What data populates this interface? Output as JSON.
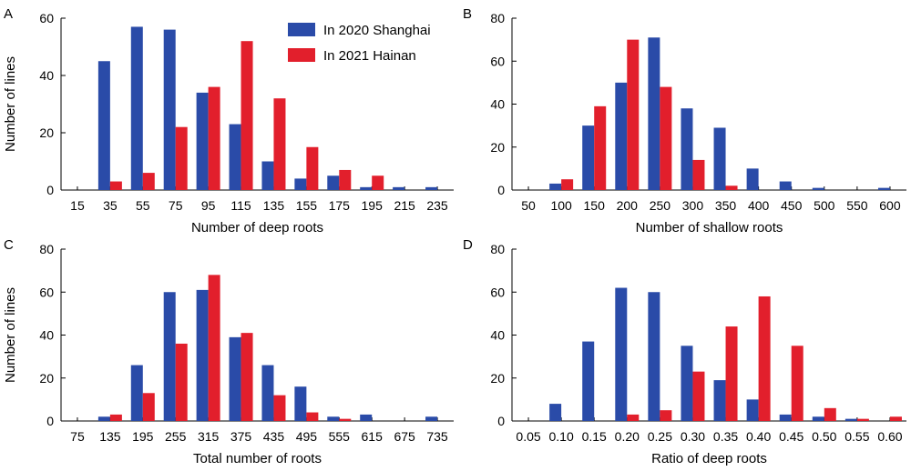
{
  "legend": {
    "series": [
      {
        "name": "In 2020 Shanghai",
        "color": "#2a4ba8"
      },
      {
        "name": "In 2021 Hainan",
        "color": "#e21f2c"
      }
    ]
  },
  "chart_data": [
    {
      "panel": "A",
      "type": "bar",
      "xlabel": "Number of deep roots",
      "ylabel": "Number of lines",
      "ylim": [
        0,
        60
      ],
      "yticks": [
        0,
        20,
        40,
        60
      ],
      "categories": [
        "15",
        "35",
        "55",
        "75",
        "95",
        "115",
        "135",
        "155",
        "175",
        "195",
        "215",
        "235"
      ],
      "series": [
        {
          "name": "In 2020 Shanghai",
          "color": "#2a4ba8",
          "values": [
            0,
            45,
            57,
            56,
            34,
            23,
            10,
            4,
            5,
            1,
            1,
            1
          ]
        },
        {
          "name": "In 2021 Hainan",
          "color": "#e21f2c",
          "values": [
            0,
            3,
            6,
            22,
            36,
            52,
            32,
            15,
            7,
            5,
            0,
            0
          ]
        }
      ],
      "grid": false,
      "legend_position": "top-right"
    },
    {
      "panel": "B",
      "type": "bar",
      "xlabel": "Number of shallow roots",
      "ylabel": "",
      "ylim": [
        0,
        80
      ],
      "yticks": [
        0,
        20,
        40,
        60,
        80
      ],
      "categories": [
        "50",
        "100",
        "150",
        "200",
        "250",
        "300",
        "350",
        "400",
        "450",
        "500",
        "550",
        "600"
      ],
      "series": [
        {
          "name": "In 2020 Shanghai",
          "color": "#2a4ba8",
          "values": [
            0,
            3,
            30,
            50,
            71,
            38,
            29,
            10,
            4,
            1,
            0,
            1
          ]
        },
        {
          "name": "In 2021 Hainan",
          "color": "#e21f2c",
          "values": [
            0,
            5,
            39,
            70,
            48,
            14,
            2,
            0,
            0,
            0,
            0,
            0
          ]
        }
      ],
      "grid": false
    },
    {
      "panel": "C",
      "type": "bar",
      "xlabel": "Total number of roots",
      "ylabel": "Number of lines",
      "ylim": [
        0,
        80
      ],
      "yticks": [
        0,
        20,
        40,
        60,
        80
      ],
      "categories": [
        "75",
        "135",
        "195",
        "255",
        "315",
        "375",
        "435",
        "495",
        "555",
        "615",
        "675",
        "735"
      ],
      "series": [
        {
          "name": "In 2020 Shanghai",
          "color": "#2a4ba8",
          "values": [
            0,
            2,
            26,
            60,
            61,
            39,
            26,
            16,
            2,
            3,
            0,
            2
          ]
        },
        {
          "name": "In 2021 Hainan",
          "color": "#e21f2c",
          "values": [
            0,
            3,
            13,
            36,
            68,
            41,
            12,
            4,
            1,
            0,
            0,
            0
          ]
        }
      ],
      "grid": false
    },
    {
      "panel": "D",
      "type": "bar",
      "xlabel": "Ratio of deep roots",
      "ylabel": "",
      "ylim": [
        0,
        80
      ],
      "yticks": [
        0,
        20,
        40,
        60,
        80
      ],
      "categories": [
        "0.05",
        "0.10",
        "0.15",
        "0.20",
        "0.25",
        "0.30",
        "0.35",
        "0.40",
        "0.45",
        "0.50",
        "0.55",
        "0.60"
      ],
      "series": [
        {
          "name": "In 2020 Shanghai",
          "color": "#2a4ba8",
          "values": [
            0,
            8,
            37,
            62,
            60,
            35,
            19,
            10,
            3,
            2,
            1,
            0
          ]
        },
        {
          "name": "In 2021 Hainan",
          "color": "#e21f2c",
          "values": [
            0,
            0,
            0,
            3,
            5,
            23,
            44,
            58,
            35,
            6,
            1,
            2
          ]
        }
      ],
      "grid": false
    }
  ]
}
